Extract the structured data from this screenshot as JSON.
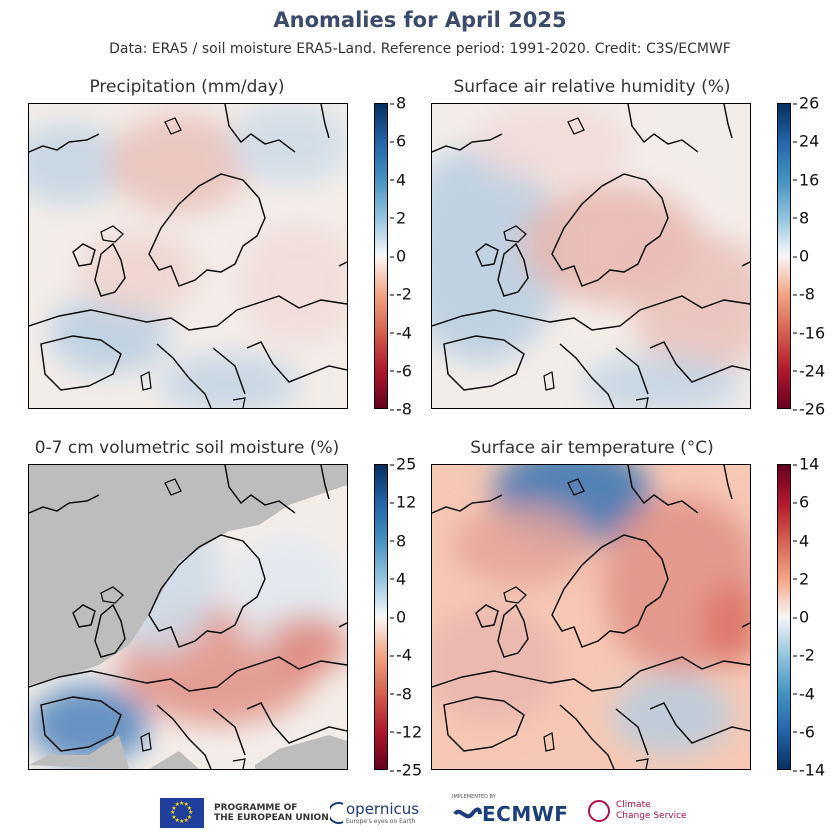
{
  "title": "Anomalies for April 2025",
  "subtitle": "Data: ERA5 / soil moisture ERA5-Land.  Reference period: 1991-2020.  Credit: C3S/ECMWF",
  "panels": [
    {
      "id": "precip",
      "title": "Precipitation (mm/day)",
      "colormap": "red-white-blue",
      "colorbar_ticks": [
        "8",
        "6",
        "4",
        "2",
        "0",
        "-2",
        "-4",
        "-6",
        "-8"
      ],
      "land_mask_grey": false
    },
    {
      "id": "humidity",
      "title": "Surface air relative humidity (%)",
      "colormap": "red-white-blue",
      "colorbar_ticks": [
        "26",
        "24",
        "16",
        "8",
        "0",
        "-8",
        "-16",
        "-24",
        "-26"
      ],
      "land_mask_grey": false
    },
    {
      "id": "soil",
      "title": "0-7 cm volumetric soil moisture (%)",
      "colormap": "red-white-blue",
      "colorbar_ticks": [
        "25",
        "12",
        "8",
        "4",
        "0",
        "-4",
        "-8",
        "-12",
        "-25"
      ],
      "land_mask_grey": true
    },
    {
      "id": "temp",
      "title": "Surface air temperature (°C)",
      "colormap": "blue-white-red",
      "colorbar_ticks": [
        "14",
        "6",
        "4",
        "2",
        "0",
        "-2",
        "-4",
        "-6",
        "-14"
      ],
      "land_mask_grey": false
    }
  ],
  "footer": {
    "eu_line1": "PROGRAMME OF",
    "eu_line2": "THE EUROPEAN UNION",
    "copernicus": "opernicus",
    "copernicus_sub": "Europe's eyes on Earth",
    "ecmwf_impl": "IMPLEMENTED BY",
    "ecmwf": "ECMWF",
    "ccs_line1": "Climate",
    "ccs_line2": "Change Service"
  },
  "colors": {
    "title": "#3b4a68",
    "grey_mask": "#bdbdbd",
    "strong_red": "#b2182b",
    "strong_blue": "#2166ac"
  }
}
